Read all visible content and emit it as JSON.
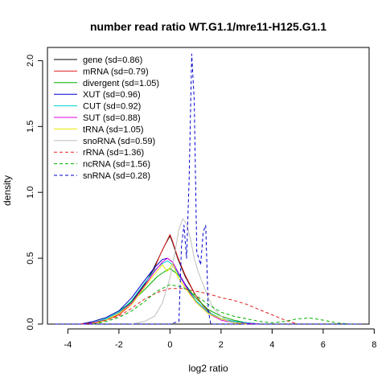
{
  "chart_data": {
    "type": "line",
    "title": "number read ratio WT.G1.1/mre11-H125.G1.1",
    "xlabel": "log2 ratio",
    "ylabel": "density",
    "xlim": [
      -4.8,
      7.8
    ],
    "ylim": [
      0,
      2.1
    ],
    "xticks": [
      -4,
      -2,
      0,
      2,
      4,
      6,
      8
    ],
    "yticks": [
      0.0,
      0.5,
      1.0,
      1.5,
      2.0
    ],
    "xtick_labels": [
      "-4",
      "-2",
      "0",
      "2",
      "4",
      "6",
      "8"
    ],
    "ytick_labels": [
      "0.0",
      "0.5",
      "1.0",
      "1.5",
      "2.0"
    ],
    "grid": false,
    "legend_position": "top-left",
    "series": [
      {
        "name": "gene (sd=0.86)",
        "color": "#000000",
        "dash": "solid",
        "x": [
          -3.5,
          -3,
          -2.5,
          -2,
          -1.5,
          -1,
          -0.7,
          -0.4,
          -0.2,
          0,
          0.1,
          0.3,
          0.6,
          1,
          1.3,
          1.6,
          2,
          2.5,
          3,
          3.5
        ],
        "y": [
          0,
          0.01,
          0.04,
          0.09,
          0.17,
          0.3,
          0.4,
          0.52,
          0.6,
          0.67,
          0.62,
          0.5,
          0.36,
          0.22,
          0.14,
          0.08,
          0.04,
          0.02,
          0.01,
          0
        ]
      },
      {
        "name": "mRNA (sd=0.79)",
        "color": "#e02020",
        "dash": "solid",
        "x": [
          -3.5,
          -3,
          -2.5,
          -2,
          -1.5,
          -1,
          -0.7,
          -0.4,
          -0.2,
          0,
          0.1,
          0.3,
          0.6,
          1,
          1.3,
          1.6,
          2,
          2.5,
          3,
          3.5
        ],
        "y": [
          0,
          0.01,
          0.03,
          0.07,
          0.15,
          0.28,
          0.38,
          0.52,
          0.6,
          0.68,
          0.63,
          0.51,
          0.37,
          0.22,
          0.14,
          0.08,
          0.04,
          0.02,
          0.01,
          0
        ]
      },
      {
        "name": "divergent (sd=1.05)",
        "color": "#00b000",
        "dash": "solid",
        "x": [
          -3.5,
          -3,
          -2.5,
          -2,
          -1.5,
          -1,
          -0.5,
          -0.2,
          0,
          0.3,
          0.6,
          1,
          1.5,
          2,
          2.5,
          3,
          3.5
        ],
        "y": [
          0,
          0.02,
          0.05,
          0.1,
          0.17,
          0.26,
          0.36,
          0.4,
          0.42,
          0.38,
          0.3,
          0.2,
          0.11,
          0.06,
          0.03,
          0.01,
          0
        ]
      },
      {
        "name": "XUT (sd=0.96)",
        "color": "#0000d0",
        "dash": "solid",
        "x": [
          -3.5,
          -3,
          -2.5,
          -2,
          -1.5,
          -1,
          -0.6,
          -0.3,
          -0.1,
          0.1,
          0.3,
          0.6,
          1,
          1.5,
          2,
          2.5,
          3,
          3.5
        ],
        "y": [
          0,
          0.02,
          0.05,
          0.1,
          0.2,
          0.33,
          0.43,
          0.49,
          0.5,
          0.47,
          0.4,
          0.3,
          0.18,
          0.09,
          0.04,
          0.02,
          0.01,
          0
        ]
      },
      {
        "name": "CUT (sd=0.92)",
        "color": "#00d0d0",
        "dash": "solid",
        "x": [
          -3.5,
          -3,
          -2.5,
          -2,
          -1.5,
          -1,
          -0.6,
          -0.3,
          -0.1,
          0.1,
          0.3,
          0.6,
          1,
          1.5,
          2,
          2.5,
          3,
          3.5
        ],
        "y": [
          0,
          0.01,
          0.04,
          0.09,
          0.18,
          0.31,
          0.41,
          0.46,
          0.48,
          0.45,
          0.39,
          0.29,
          0.18,
          0.09,
          0.04,
          0.02,
          0.01,
          0
        ]
      },
      {
        "name": "SUT (sd=0.88)",
        "color": "#e000e0",
        "dash": "solid",
        "x": [
          -3.5,
          -3,
          -2.5,
          -2,
          -1.5,
          -1,
          -0.6,
          -0.3,
          -0.1,
          0.1,
          0.3,
          0.6,
          1,
          1.5,
          2,
          2.5,
          3,
          3.5
        ],
        "y": [
          0,
          0.01,
          0.03,
          0.08,
          0.16,
          0.29,
          0.4,
          0.47,
          0.5,
          0.47,
          0.4,
          0.29,
          0.17,
          0.08,
          0.03,
          0.01,
          0.005,
          0
        ]
      },
      {
        "name": "tRNA (sd=1.05)",
        "color": "#e8e800",
        "dash": "solid",
        "x": [
          -3,
          -2.5,
          -2,
          -1.5,
          -1,
          -0.6,
          -0.3,
          -0.1,
          0.1,
          0.3,
          0.5,
          0.8,
          1.1,
          1.5,
          2,
          2.5,
          3
        ],
        "y": [
          0,
          0.03,
          0.08,
          0.15,
          0.28,
          0.38,
          0.45,
          0.4,
          0.46,
          0.36,
          0.3,
          0.22,
          0.15,
          0.08,
          0.04,
          0.01,
          0
        ]
      },
      {
        "name": "snoRNA (sd=0.59)",
        "color": "#bebebe",
        "dash": "solid",
        "x": [
          -1.5,
          -1,
          -0.6,
          -0.3,
          0,
          0.2,
          0.35,
          0.5,
          0.65,
          0.8,
          0.95,
          1.1,
          1.3,
          1.5,
          1.7,
          2,
          2.3,
          2.6
        ],
        "y": [
          0,
          0.02,
          0.06,
          0.16,
          0.35,
          0.55,
          0.72,
          0.8,
          0.76,
          0.65,
          0.5,
          0.4,
          0.3,
          0.2,
          0.12,
          0.06,
          0.02,
          0
        ]
      },
      {
        "name": "rRNA (sd=1.36)",
        "color": "#e02020",
        "dash": "dashed",
        "x": [
          -3.5,
          -3,
          -2.5,
          -2,
          -1.5,
          -1,
          -0.5,
          0,
          0.5,
          1,
          1.5,
          2,
          2.5,
          3,
          3.5,
          4,
          4.5,
          5
        ],
        "y": [
          0,
          0.01,
          0.03,
          0.06,
          0.12,
          0.19,
          0.24,
          0.27,
          0.27,
          0.25,
          0.23,
          0.2,
          0.18,
          0.15,
          0.11,
          0.07,
          0.03,
          0
        ]
      },
      {
        "name": "ncRNA (sd=1.56)",
        "color": "#00b000",
        "dash": "dashed",
        "x": [
          -3,
          -2.5,
          -2,
          -1.5,
          -1,
          -0.5,
          0,
          0.5,
          1,
          1.5,
          2,
          2.5,
          3,
          3.5,
          4,
          4.5,
          5,
          5.5,
          6,
          6.5,
          7,
          7.5
        ],
        "y": [
          0,
          0.02,
          0.05,
          0.1,
          0.17,
          0.25,
          0.3,
          0.28,
          0.22,
          0.15,
          0.09,
          0.06,
          0.04,
          0.02,
          0.01,
          0.02,
          0.04,
          0.045,
          0.03,
          0.01,
          0,
          0
        ]
      },
      {
        "name": "snRNA (sd=0.28)",
        "color": "#0000d0",
        "dash": "dashed",
        "x": [
          -4.5,
          -2,
          0,
          0.35,
          0.45,
          0.55,
          0.65,
          0.75,
          0.85,
          0.95,
          1.05,
          1.2,
          1.3,
          1.4,
          1.5,
          1.6,
          2,
          4,
          7.5
        ],
        "y": [
          0,
          0,
          0,
          0.02,
          0.6,
          0.75,
          0.5,
          1.1,
          2.05,
          1.7,
          0.55,
          0.45,
          0.7,
          0.75,
          0.1,
          0,
          0,
          0,
          0
        ]
      }
    ]
  }
}
